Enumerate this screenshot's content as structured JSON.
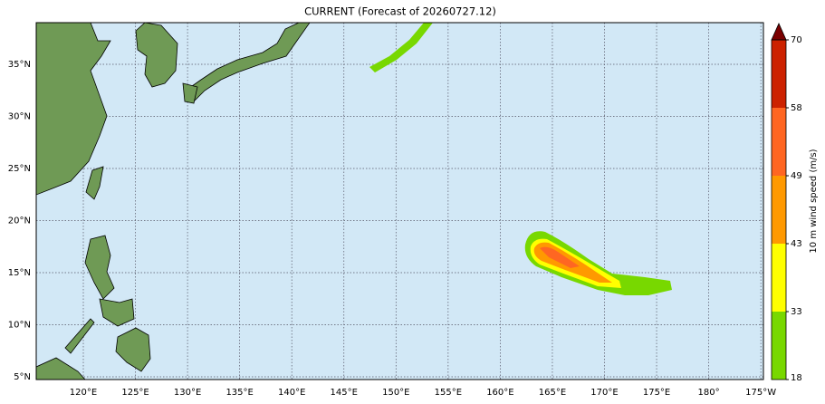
{
  "title": "CURRENT (Forecast of 20260727.12)",
  "map": {
    "lon_labels": [
      "120°E",
      "125°E",
      "130°E",
      "135°E",
      "140°E",
      "145°E",
      "150°E",
      "155°E",
      "160°E",
      "165°E",
      "170°E",
      "175°E",
      "180°",
      "175°W"
    ],
    "lat_labels": [
      "35°N",
      "30°N",
      "25°N",
      "20°N",
      "15°N",
      "10°N",
      "5°N"
    ]
  },
  "colorbar": {
    "label": "10 m wind speed (m/s)",
    "ticks": [
      18,
      33,
      43,
      49,
      58,
      70
    ],
    "colors": [
      "#78d800",
      "#ffff00",
      "#ff9900",
      "#ff6622",
      "#cc2200"
    ],
    "extend_color": "#7a0000"
  }
}
